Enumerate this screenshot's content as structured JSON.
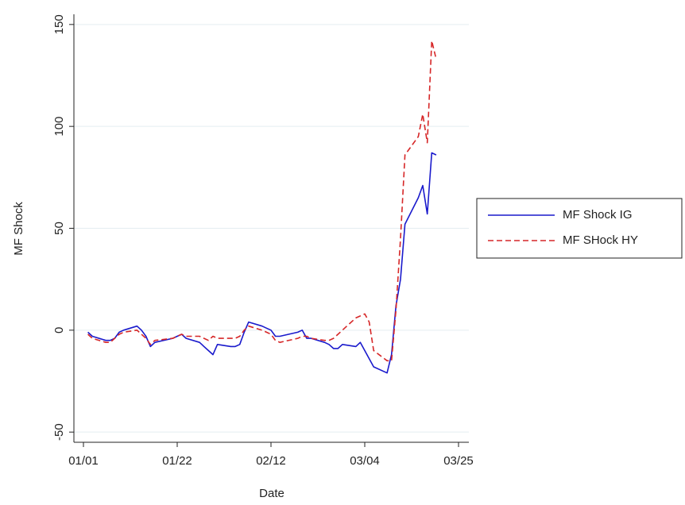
{
  "chart_data": {
    "type": "line",
    "x_label": "Date",
    "y_label": "MF Shock",
    "x": [
      "01/02",
      "01/03",
      "01/06",
      "01/07",
      "01/08",
      "01/09",
      "01/10",
      "01/13",
      "01/14",
      "01/15",
      "01/16",
      "01/17",
      "01/21",
      "01/22",
      "01/23",
      "01/24",
      "01/27",
      "01/28",
      "01/29",
      "01/30",
      "01/31",
      "02/03",
      "02/04",
      "02/05",
      "02/06",
      "02/07",
      "02/10",
      "02/11",
      "02/12",
      "02/13",
      "02/14",
      "02/18",
      "02/19",
      "02/20",
      "02/21",
      "02/24",
      "02/25",
      "02/26",
      "02/27",
      "02/28",
      "03/02",
      "03/03",
      "03/04",
      "03/05",
      "03/06",
      "03/09",
      "03/10",
      "03/11",
      "03/12",
      "03/13",
      "03/16",
      "03/17",
      "03/18",
      "03/19",
      "03/20"
    ],
    "series": [
      {
        "name": "MF Shock IG",
        "color": "#1a1acc",
        "dash": false,
        "values": [
          -1,
          -3,
          -5,
          -5,
          -4,
          -1,
          0,
          2,
          0,
          -3,
          -8,
          -6,
          -4,
          -3,
          -2,
          -4,
          -6,
          -8,
          -10,
          -12,
          -7,
          -8,
          -8,
          -7,
          -1,
          4,
          2,
          1,
          0,
          -3,
          -3,
          -1,
          0,
          -4,
          -4,
          -6,
          -7,
          -9,
          -9,
          -7,
          -8,
          -6,
          -10,
          -14,
          -18,
          -21,
          -12,
          12,
          25,
          52,
          65,
          71,
          57,
          87,
          86
        ]
      },
      {
        "name": "MF SHock HY",
        "color": "#d62728",
        "dash": true,
        "values": [
          -2,
          -4,
          -6,
          -6,
          -4,
          -2,
          -1,
          0,
          -2,
          -4,
          -7,
          -5,
          -4,
          -3,
          -2,
          -3,
          -3,
          -4,
          -5,
          -3,
          -4,
          -4,
          -4,
          -3,
          0,
          2,
          0,
          -1,
          -2,
          -5,
          -6,
          -4,
          -3,
          -3,
          -4,
          -5,
          -5,
          -4,
          -2,
          0,
          6,
          7,
          8,
          4,
          -10,
          -15,
          -15,
          10,
          45,
          86,
          95,
          106,
          92,
          142,
          133
        ]
      }
    ],
    "xlim": [
      "01/01",
      "03/25"
    ],
    "xticks": [
      "01/01",
      "01/22",
      "02/12",
      "03/04",
      "03/25"
    ],
    "ylim": [
      -55,
      155
    ],
    "yticks": [
      -50,
      0,
      50,
      100,
      150
    ],
    "grid": true,
    "legend": "right"
  }
}
